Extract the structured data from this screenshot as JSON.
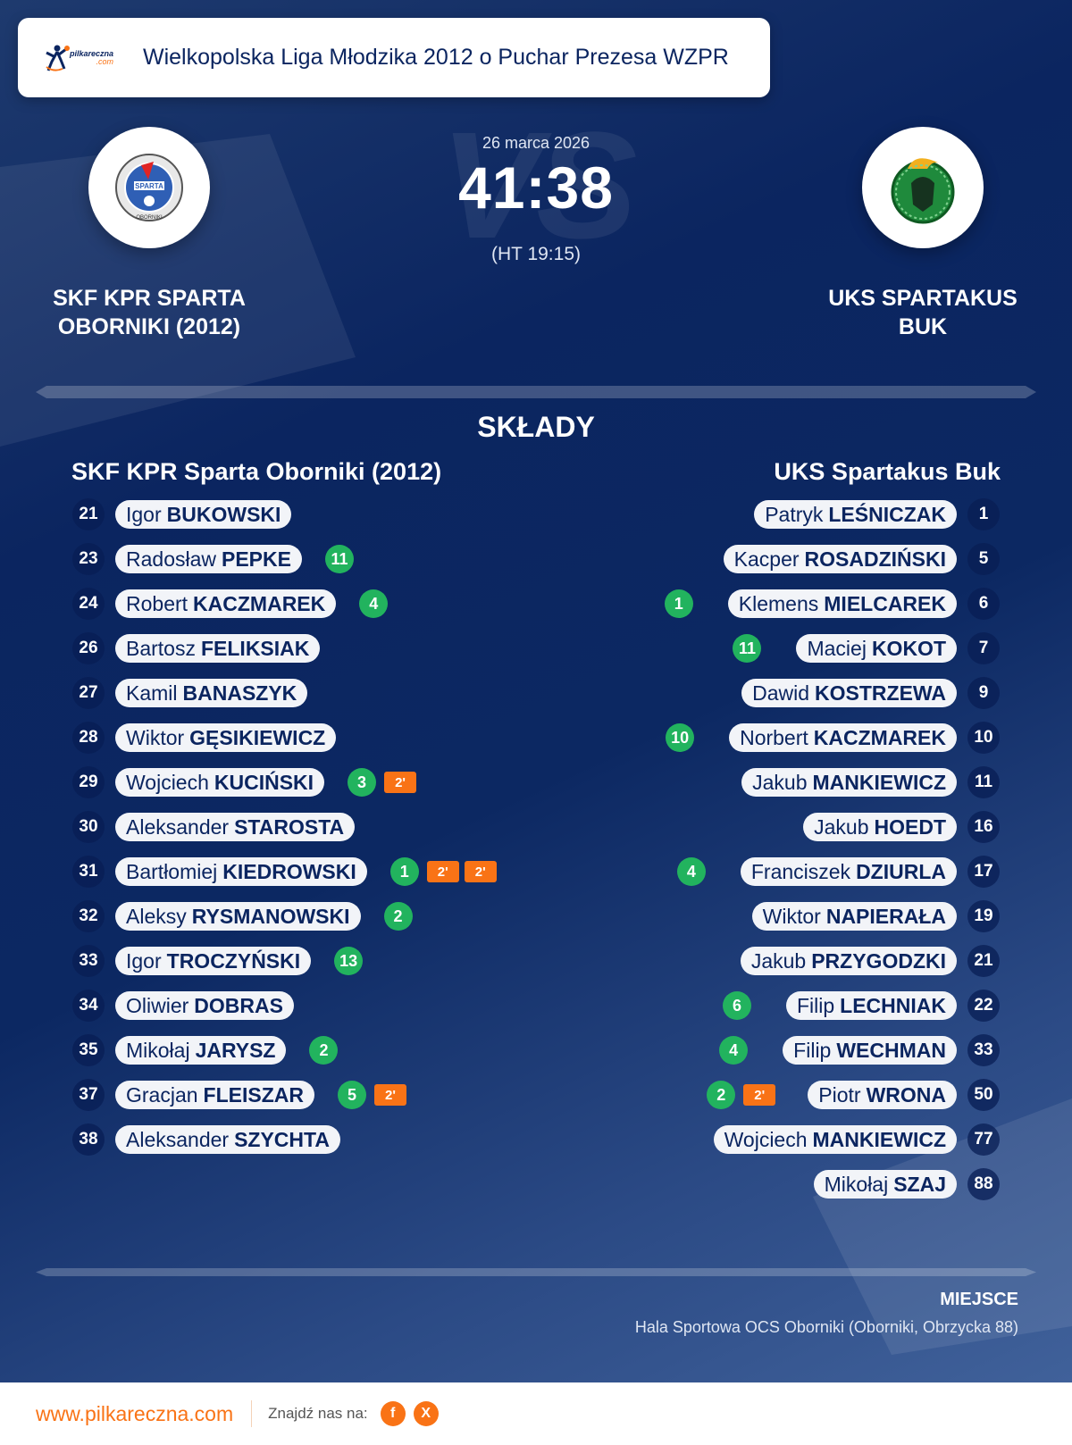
{
  "header": {
    "brand_logo_text": "pilkareczna.com",
    "title": "Wielkopolska Liga Młodzika 2012 o Puchar Prezesa WZPR"
  },
  "match": {
    "date": "26 marca 2026",
    "score": "41:38",
    "halftime": "(HT 19:15)",
    "vs_watermark": "VS"
  },
  "home": {
    "name_upper_line1": "SKF KPR SPARTA",
    "name_upper_line2": "OBORNIKI (2012)",
    "name": "SKF KPR Sparta Oborniki (2012)",
    "logo_text": "SKF KPR SPARTA OBORNIKI"
  },
  "away": {
    "name_upper_line1": "UKS SPARTAKUS",
    "name_upper_line2": "BUK",
    "name": "UKS Spartakus Buk",
    "logo_text": "UKS SPARTAKUS BUK"
  },
  "lineups_title": "SKŁADY",
  "home_players": [
    {
      "number": "21",
      "first": "Igor",
      "last": "BUKOWSKI",
      "goals": null,
      "penalties": []
    },
    {
      "number": "23",
      "first": "Radosław",
      "last": "PEPKE",
      "goals": "11",
      "penalties": []
    },
    {
      "number": "24",
      "first": "Robert",
      "last": "KACZMAREK",
      "goals": "4",
      "penalties": []
    },
    {
      "number": "26",
      "first": "Bartosz",
      "last": "FELIKSIAK",
      "goals": null,
      "penalties": []
    },
    {
      "number": "27",
      "first": "Kamil",
      "last": "BANASZYK",
      "goals": null,
      "penalties": []
    },
    {
      "number": "28",
      "first": "Wiktor",
      "last": "GĘSIKIEWICZ",
      "goals": null,
      "penalties": []
    },
    {
      "number": "29",
      "first": "Wojciech",
      "last": "KUCIŃSKI",
      "goals": "3",
      "penalties": [
        "2'"
      ]
    },
    {
      "number": "30",
      "first": "Aleksander",
      "last": "STAROSTA",
      "goals": null,
      "penalties": []
    },
    {
      "number": "31",
      "first": "Bartłomiej",
      "last": "KIEDROWSKI",
      "goals": "1",
      "penalties": [
        "2'",
        "2'"
      ]
    },
    {
      "number": "32",
      "first": "Aleksy",
      "last": "RYSMANOWSKI",
      "goals": "2",
      "penalties": []
    },
    {
      "number": "33",
      "first": "Igor",
      "last": "TROCZYŃSKI",
      "goals": "13",
      "penalties": []
    },
    {
      "number": "34",
      "first": "Oliwier",
      "last": "DOBRAS",
      "goals": null,
      "penalties": []
    },
    {
      "number": "35",
      "first": "Mikołaj",
      "last": "JARYSZ",
      "goals": "2",
      "penalties": []
    },
    {
      "number": "37",
      "first": "Gracjan",
      "last": "FLEISZAR",
      "goals": "5",
      "penalties": [
        "2'"
      ]
    },
    {
      "number": "38",
      "first": "Aleksander",
      "last": "SZYCHTA",
      "goals": null,
      "penalties": []
    }
  ],
  "away_players": [
    {
      "number": "1",
      "first": "Patryk",
      "last": "LEŚNICZAK",
      "goals": null,
      "penalties": []
    },
    {
      "number": "5",
      "first": "Kacper",
      "last": "ROSADZIŃSKI",
      "goals": null,
      "penalties": []
    },
    {
      "number": "6",
      "first": "Klemens",
      "last": "MIELCAREK",
      "goals": "1",
      "penalties": []
    },
    {
      "number": "7",
      "first": "Maciej",
      "last": "KOKOT",
      "goals": "11",
      "penalties": []
    },
    {
      "number": "9",
      "first": "Dawid",
      "last": "KOSTRZEWA",
      "goals": null,
      "penalties": []
    },
    {
      "number": "10",
      "first": "Norbert",
      "last": "KACZMAREK",
      "goals": "10",
      "penalties": []
    },
    {
      "number": "11",
      "first": "Jakub",
      "last": "MANKIEWICZ",
      "goals": null,
      "penalties": []
    },
    {
      "number": "16",
      "first": "Jakub",
      "last": "HOEDT",
      "goals": null,
      "penalties": []
    },
    {
      "number": "17",
      "first": "Franciszek",
      "last": "DZIURLA",
      "goals": "4",
      "penalties": []
    },
    {
      "number": "19",
      "first": "Wiktor",
      "last": "NAPIERAŁA",
      "goals": null,
      "penalties": []
    },
    {
      "number": "21",
      "first": "Jakub",
      "last": "PRZYGODZKI",
      "goals": null,
      "penalties": []
    },
    {
      "number": "22",
      "first": "Filip",
      "last": "LECHNIAK",
      "goals": "6",
      "penalties": []
    },
    {
      "number": "33",
      "first": "Filip",
      "last": "WECHMAN",
      "goals": "4",
      "penalties": []
    },
    {
      "number": "50",
      "first": "Piotr",
      "last": "WRONA",
      "goals": "2",
      "penalties": [
        "2'"
      ]
    },
    {
      "number": "77",
      "first": "Wojciech",
      "last": "MANKIEWICZ",
      "goals": null,
      "penalties": []
    },
    {
      "number": "88",
      "first": "Mikołaj",
      "last": "SZAJ",
      "goals": null,
      "penalties": []
    }
  ],
  "venue": {
    "label": "MIEJSCE",
    "value": "Hala Sportowa OCS Oborniki (Oborniki, Obrzycka 88)"
  },
  "footer": {
    "website": "www.pilkareczna.com",
    "find_us": "Znajdź nas na:",
    "social": [
      {
        "icon": "facebook-icon",
        "glyph": "f"
      },
      {
        "icon": "x-icon",
        "glyph": "X"
      }
    ]
  },
  "colors": {
    "navy": "#0b2560",
    "goal_badge": "#22b35e",
    "penalty_badge": "#f97316",
    "accent": "#f97316"
  }
}
